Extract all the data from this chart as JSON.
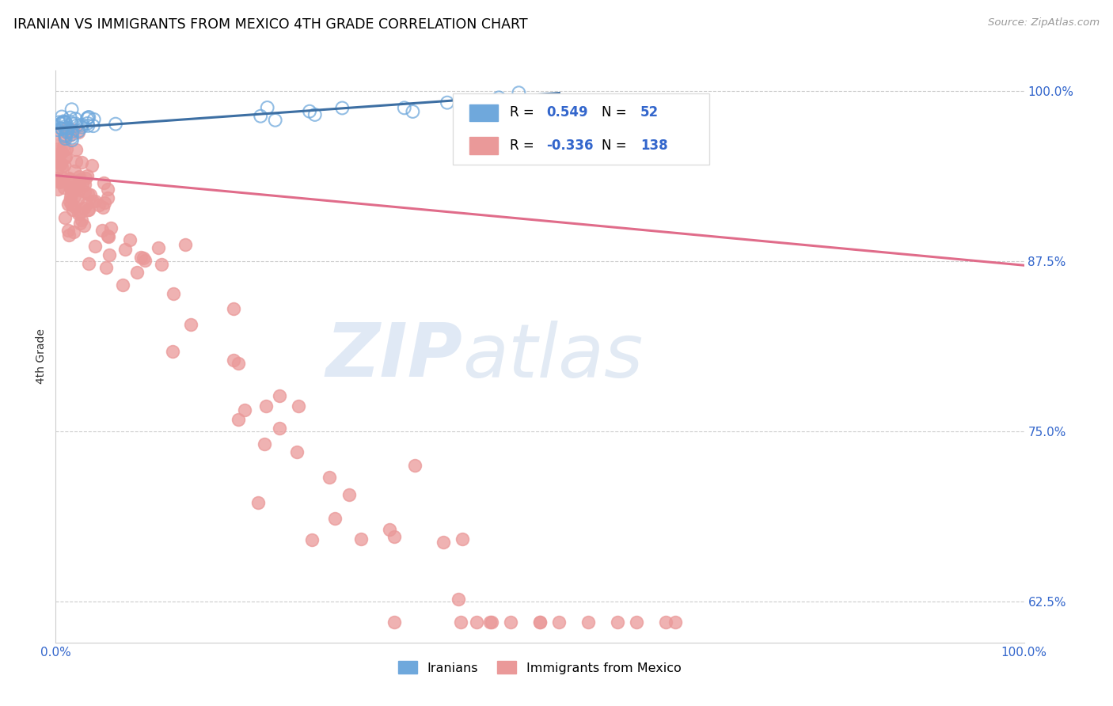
{
  "title": "IRANIAN VS IMMIGRANTS FROM MEXICO 4TH GRADE CORRELATION CHART",
  "source": "Source: ZipAtlas.com",
  "ylabel": "4th Grade",
  "xlim": [
    0.0,
    1.0
  ],
  "ylim": [
    0.595,
    1.015
  ],
  "yticks": [
    0.625,
    0.75,
    0.875,
    1.0
  ],
  "ytick_labels": [
    "62.5%",
    "75.0%",
    "87.5%",
    "100.0%"
  ],
  "background_color": "#ffffff",
  "watermark_zip": "ZIP",
  "watermark_atlas": "atlas",
  "iranian_color": "#6fa8dc",
  "iranian_edge_color": "#6fa8dc",
  "mexico_color": "#ea9999",
  "mexico_edge_color": "#ea9999",
  "iranian_line_color": "#3d6fa3",
  "mexico_line_color": "#e06c8a",
  "R_iranian": 0.549,
  "N_iranian": 52,
  "R_mexico": -0.336,
  "N_mexico": 138,
  "legend_label_iranian": "Iranians",
  "legend_label_mexico": "Immigrants from Mexico",
  "iran_trend_x": [
    0.0,
    0.52
  ],
  "iran_trend_y": [
    0.9725,
    0.9985
  ],
  "mex_trend_x": [
    0.0,
    1.0
  ],
  "mex_trend_y": [
    0.938,
    0.872
  ]
}
